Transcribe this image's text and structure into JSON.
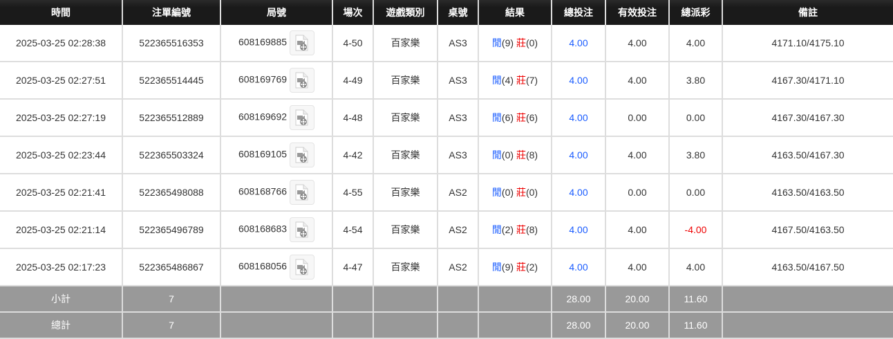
{
  "headers": [
    "時間",
    "注單編號",
    "局號",
    "場次",
    "遊戲類別",
    "桌號",
    "結果",
    "總投注",
    "有效投注",
    "總派彩",
    "備註"
  ],
  "result_labels": {
    "player": "閒",
    "banker": "莊"
  },
  "colors": {
    "header_bg": "#1a1a1a",
    "summary_bg": "#999999",
    "player": "#1a5cff",
    "banker": "#ee0000",
    "bet": "#1a5cff",
    "negative": "#ee0000"
  },
  "rows": [
    {
      "time": "2025-03-25 02:28:38",
      "bet_id": "522365516353",
      "round": "608169885",
      "shoe": "4-50",
      "game": "百家樂",
      "table": "AS3",
      "player": "(9)",
      "banker": "(0)",
      "total_bet": "4.00",
      "valid_bet": "4.00",
      "payout": "4.00",
      "note": "4171.10/4175.10"
    },
    {
      "time": "2025-03-25 02:27:51",
      "bet_id": "522365514445",
      "round": "608169769",
      "shoe": "4-49",
      "game": "百家樂",
      "table": "AS3",
      "player": "(4)",
      "banker": "(7)",
      "total_bet": "4.00",
      "valid_bet": "4.00",
      "payout": "3.80",
      "note": "4167.30/4171.10"
    },
    {
      "time": "2025-03-25 02:27:19",
      "bet_id": "522365512889",
      "round": "608169692",
      "shoe": "4-48",
      "game": "百家樂",
      "table": "AS3",
      "player": "(6)",
      "banker": "(6)",
      "total_bet": "4.00",
      "valid_bet": "0.00",
      "payout": "0.00",
      "note": "4167.30/4167.30"
    },
    {
      "time": "2025-03-25 02:23:44",
      "bet_id": "522365503324",
      "round": "608169105",
      "shoe": "4-42",
      "game": "百家樂",
      "table": "AS3",
      "player": "(0)",
      "banker": "(8)",
      "total_bet": "4.00",
      "valid_bet": "4.00",
      "payout": "3.80",
      "note": "4163.50/4167.30"
    },
    {
      "time": "2025-03-25 02:21:41",
      "bet_id": "522365498088",
      "round": "608168766",
      "shoe": "4-55",
      "game": "百家樂",
      "table": "AS2",
      "player": "(0)",
      "banker": "(0)",
      "total_bet": "4.00",
      "valid_bet": "0.00",
      "payout": "0.00",
      "note": "4163.50/4163.50"
    },
    {
      "time": "2025-03-25 02:21:14",
      "bet_id": "522365496789",
      "round": "608168683",
      "shoe": "4-54",
      "game": "百家樂",
      "table": "AS2",
      "player": "(2)",
      "banker": "(8)",
      "total_bet": "4.00",
      "valid_bet": "4.00",
      "payout": "-4.00",
      "note": "4167.50/4163.50"
    },
    {
      "time": "2025-03-25 02:17:23",
      "bet_id": "522365486867",
      "round": "608168056",
      "shoe": "4-47",
      "game": "百家樂",
      "table": "AS2",
      "player": "(9)",
      "banker": "(2)",
      "total_bet": "4.00",
      "valid_bet": "4.00",
      "payout": "4.00",
      "note": "4163.50/4167.50"
    }
  ],
  "subtotal": {
    "label": "小計",
    "count": "7",
    "total_bet": "28.00",
    "valid_bet": "20.00",
    "payout": "11.60"
  },
  "total": {
    "label": "總計",
    "count": "7",
    "total_bet": "28.00",
    "valid_bet": "20.00",
    "payout": "11.60"
  },
  "icons": {
    "replay": "video-file-icon"
  }
}
